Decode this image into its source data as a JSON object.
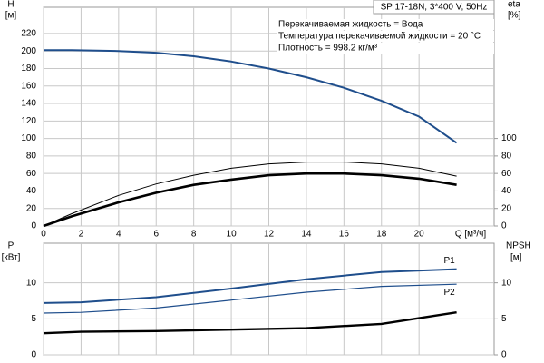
{
  "chart_data": [
    {
      "type": "line",
      "title": "SP 17-18N, 3*400 V, 50Hz",
      "annotations": [
        "Перекачиваемая жидкость = Вода",
        "Температура перекачиваемой жидкости = 20 °C",
        "Плотность = 998.2 кг/м³"
      ],
      "ylabel": "H",
      "yunit": "[м]",
      "y2label": "eta",
      "y2unit": "[%]",
      "xlabel": "Q [м³/ч]",
      "xlim": [
        0,
        24
      ],
      "xticks": [
        0,
        2,
        4,
        6,
        8,
        10,
        12,
        14,
        16,
        18,
        20
      ],
      "ylim": [
        0,
        250
      ],
      "yticks": [
        0,
        20,
        40,
        60,
        80,
        100,
        120,
        140,
        160,
        180,
        200,
        220
      ],
      "y2lim": [
        0,
        250
      ],
      "y2ticks": [
        0,
        20,
        40,
        60,
        80,
        100
      ],
      "grid": true,
      "x": [
        0,
        1.5,
        4,
        6,
        8,
        10,
        12,
        14,
        16,
        18,
        20,
        22
      ],
      "series": [
        {
          "color": "#1f4e8c",
          "linewidth": 2,
          "values": [
            201,
            201,
            200,
            198,
            194,
            188,
            180,
            170,
            158,
            143,
            125,
            95
          ]
        },
        {
          "color": "#000000",
          "linewidth": 2.6,
          "axis": "y2",
          "values": [
            0,
            11,
            27,
            38,
            47,
            53,
            58,
            60,
            60,
            58,
            54,
            47
          ]
        },
        {
          "color": "#000000",
          "linewidth": 1,
          "axis": "y2",
          "values": [
            0,
            14,
            35,
            48,
            58,
            66,
            71,
            73,
            73,
            71,
            66,
            57
          ]
        }
      ]
    },
    {
      "type": "line",
      "ylabel": "P",
      "yunit": "[кВт]",
      "y2label": "NPSH",
      "y2unit": "[м]",
      "xlim": [
        0,
        24
      ],
      "xticks": [
        0,
        2,
        4,
        6,
        8,
        10,
        12,
        14,
        16,
        18,
        20
      ],
      "ylim": [
        0,
        15.5
      ],
      "yticks": [
        0,
        5,
        10
      ],
      "y2lim": [
        0,
        15.5
      ],
      "y2ticks": [
        0,
        5,
        10
      ],
      "grid": true,
      "x": [
        0,
        2,
        6,
        10,
        14,
        18,
        22
      ],
      "series": [
        {
          "name": "P1",
          "color": "#1f4e8c",
          "linewidth": 2,
          "values": [
            7.2,
            7.3,
            8.0,
            9.2,
            10.5,
            11.5,
            11.9
          ]
        },
        {
          "name": "P2",
          "color": "#1f4e8c",
          "linewidth": 1.2,
          "values": [
            5.8,
            5.9,
            6.5,
            7.6,
            8.7,
            9.5,
            9.8
          ]
        },
        {
          "color": "#000000",
          "linewidth": 2.4,
          "axis": "y2",
          "values": [
            3.0,
            3.2,
            3.3,
            3.5,
            3.7,
            4.3,
            5.9
          ]
        }
      ]
    }
  ]
}
